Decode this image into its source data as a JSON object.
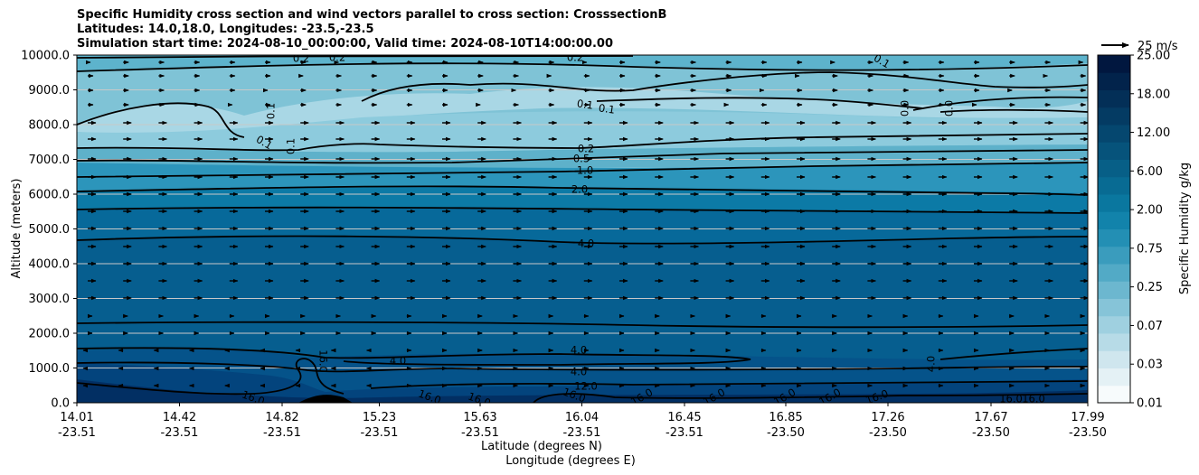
{
  "chart_data": {
    "type": "contourf",
    "title_lines": [
      "Specific Humidity cross section and wind vectors parallel to cross section: CrosssectionB",
      "Latitudes: 14.0,18.0, Longitudes: -23.5,-23.5",
      "Simulation start time: 2024-08-10_00:00:00, Valid time: 2024-08-10T14:00:00.00"
    ],
    "xlabel": "Latitude (degrees N)",
    "xlabel2": "Longitude (degrees E)",
    "ylabel": "Altitude (meters)",
    "ylim": [
      0,
      10000
    ],
    "x_ticks": [
      {
        "lat": "14.01",
        "lon": "-23.51"
      },
      {
        "lat": "14.42",
        "lon": "-23.51"
      },
      {
        "lat": "14.82",
        "lon": "-23.51"
      },
      {
        "lat": "15.23",
        "lon": "-23.51"
      },
      {
        "lat": "15.63",
        "lon": "-23.51"
      },
      {
        "lat": "16.04",
        "lon": "-23.51"
      },
      {
        "lat": "16.45",
        "lon": "-23.51"
      },
      {
        "lat": "16.85",
        "lon": "-23.50"
      },
      {
        "lat": "17.26",
        "lon": "-23.50"
      },
      {
        "lat": "17.67",
        "lon": "-23.50"
      },
      {
        "lat": "17.99",
        "lon": "-23.50"
      }
    ],
    "y_ticks": [
      "0.0",
      "1000.0",
      "2000.0",
      "3000.0",
      "4000.0",
      "5000.0",
      "6000.0",
      "7000.0",
      "8000.0",
      "9000.0",
      "10000.0"
    ],
    "colorbar": {
      "label": "Specific Humidity g/kg",
      "tick_labels": [
        "0.01",
        "0.03",
        "0.07",
        "0.25",
        "0.75",
        "2.00",
        "6.00",
        "12.00",
        "18.00",
        "25.00"
      ],
      "colors": [
        "#f7fbfc",
        "#e4f1f5",
        "#cfe6ee",
        "#b7dbe7",
        "#9fd0e0",
        "#86c4d8",
        "#6cb7cf",
        "#52aac6",
        "#3a9cbd",
        "#238fb4",
        "#1283ab",
        "#0a779f",
        "#086b93",
        "#075f87",
        "#06537b",
        "#05476f",
        "#043b63",
        "#032f57",
        "#02234b",
        "#01173f"
      ]
    },
    "quiver_key": "25 m/s",
    "contour_levels_labeled": [
      {
        "value": "0.2"
      },
      {
        "value": "0.2"
      },
      {
        "value": "0.2"
      },
      {
        "value": "0.1"
      },
      {
        "value": "0.1"
      },
      {
        "value": "0.1"
      },
      {
        "value": "0.1"
      },
      {
        "value": "0.1"
      },
      {
        "value": "0.1"
      },
      {
        "value": "0.0"
      },
      {
        "value": "0.0"
      },
      {
        "value": "0.2"
      },
      {
        "value": "0.5"
      },
      {
        "value": "1.0"
      },
      {
        "value": "2.0"
      },
      {
        "value": "4.0"
      },
      {
        "value": "4.0"
      },
      {
        "value": "4.0"
      },
      {
        "value": "4.0"
      },
      {
        "value": "12.0"
      },
      {
        "value": "16.0"
      },
      {
        "value": "16.0"
      },
      {
        "value": "16.0"
      },
      {
        "value": "16.0"
      },
      {
        "value": "16.0"
      },
      {
        "value": "16.0"
      },
      {
        "value": "16.0"
      },
      {
        "value": "16.0"
      },
      {
        "value": "16.0"
      },
      {
        "value": "16.0"
      },
      {
        "value": "16.0"
      },
      {
        "value": "16.0"
      },
      {
        "value": "4.0"
      }
    ]
  }
}
